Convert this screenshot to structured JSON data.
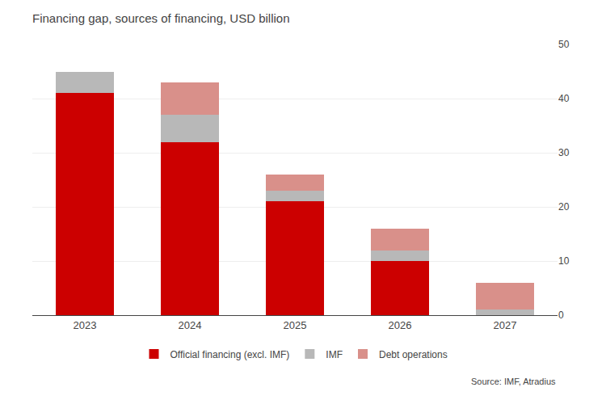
{
  "chart_data": {
    "type": "bar",
    "title": "Financing gap, sources of financing, USD billion",
    "categories": [
      "2023",
      "2024",
      "2025",
      "2026",
      "2027"
    ],
    "series": [
      {
        "name": "Official financing (excl. IMF)",
        "color": "#cc0000",
        "values": [
          41,
          32,
          21,
          10,
          0
        ]
      },
      {
        "name": "IMF",
        "color": "#b8b8b8",
        "values": [
          4,
          5,
          2,
          2,
          1
        ]
      },
      {
        "name": "Debt operations",
        "color": "#d9908a",
        "values": [
          0,
          6,
          3,
          4,
          5
        ]
      }
    ],
    "stacked": true,
    "ylim": [
      0,
      50
    ],
    "yticks": [
      0,
      10,
      20,
      30,
      40,
      50
    ],
    "grid": true,
    "legend": "bottom",
    "annotations": [
      "Source: IMF, Atradius"
    ]
  }
}
